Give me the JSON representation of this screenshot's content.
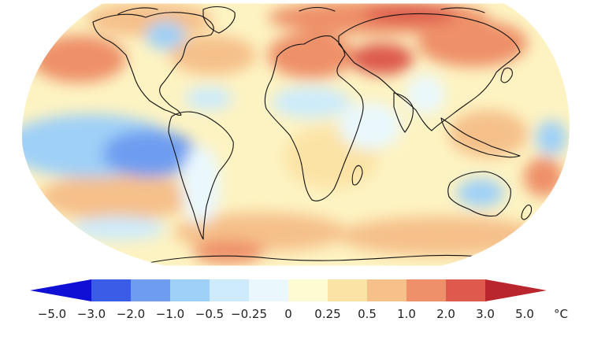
{
  "legend": {
    "ticks": [
      "−5.0",
      "−3.0",
      "−2.0",
      "−1.0",
      "−0.5",
      "−0.25",
      "0",
      "0.25",
      "0.5",
      "1.0",
      "2.0",
      "3.0",
      "5.0"
    ],
    "unit": "°C",
    "colors": [
      "#0f0fd6",
      "#3a5ce6",
      "#6e9df0",
      "#9fd0f7",
      "#cdebfb",
      "#eaf8fd",
      "#fdfbd2",
      "#fbe3a6",
      "#f5c08a",
      "#ee9069",
      "#dd5a4c",
      "#b9262d"
    ]
  },
  "map": {
    "projection": "Robinson",
    "ocean_color": "#fdf3c2",
    "land_outline_color": "#111111"
  }
}
